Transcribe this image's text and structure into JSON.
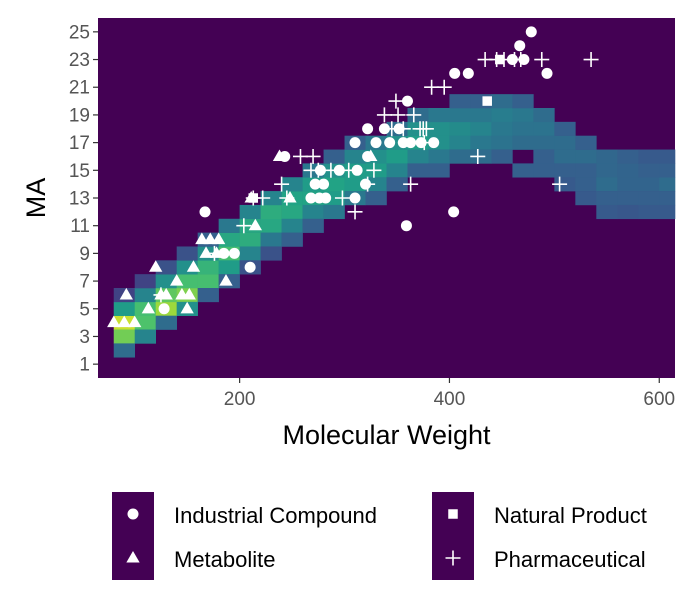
{
  "chart_data": {
    "type": "heatmap",
    "title": "",
    "xlabel": "Molecular Weight",
    "ylabel": "MA",
    "xlim": [
      65,
      615
    ],
    "ylim": [
      0,
      26
    ],
    "x_ticks": [
      200,
      400,
      600
    ],
    "x_tick_labels": [
      "200",
      "400",
      "600"
    ],
    "y_ticks": [
      1,
      3,
      5,
      7,
      9,
      11,
      13,
      15,
      17,
      19,
      21,
      23,
      25
    ],
    "y_tick_labels": [
      "1",
      "3",
      "5",
      "7",
      "9",
      "11",
      "13",
      "15",
      "17",
      "19",
      "21",
      "23",
      "25"
    ],
    "heatmap": {
      "x_bin_width": 20,
      "x_bins_start": 60,
      "y_bin_height": 1,
      "y_bins_start": 1,
      "description": "2D histogram of molecule counts (relative density 0-1) over molecular weight and MA, viridis color scale",
      "cells_xy_density": [
        [
          80,
          4,
          0.92
        ],
        [
          80,
          3,
          0.78
        ],
        [
          80,
          5,
          0.55
        ],
        [
          80,
          2,
          0.35
        ],
        [
          80,
          6,
          0.2
        ],
        [
          100,
          4,
          0.72
        ],
        [
          100,
          5,
          0.7
        ],
        [
          100,
          3,
          0.45
        ],
        [
          100,
          6,
          0.45
        ],
        [
          100,
          7,
          0.2
        ],
        [
          120,
          5,
          0.85
        ],
        [
          120,
          6,
          0.75
        ],
        [
          120,
          7,
          0.5
        ],
        [
          120,
          4,
          0.35
        ],
        [
          120,
          8,
          0.25
        ],
        [
          140,
          6,
          0.8
        ],
        [
          140,
          7,
          0.7
        ],
        [
          140,
          5,
          0.5
        ],
        [
          140,
          8,
          0.5
        ],
        [
          140,
          9,
          0.25
        ],
        [
          160,
          7,
          0.7
        ],
        [
          160,
          8,
          0.65
        ],
        [
          160,
          9,
          0.5
        ],
        [
          160,
          6,
          0.3
        ],
        [
          160,
          10,
          0.3
        ],
        [
          180,
          9,
          0.7
        ],
        [
          180,
          10,
          0.6
        ],
        [
          180,
          8,
          0.55
        ],
        [
          180,
          11,
          0.4
        ],
        [
          180,
          7,
          0.3
        ],
        [
          200,
          10,
          0.62
        ],
        [
          200,
          11,
          0.6
        ],
        [
          200,
          9,
          0.45
        ],
        [
          200,
          12,
          0.45
        ],
        [
          200,
          8,
          0.25
        ],
        [
          220,
          11,
          0.6
        ],
        [
          220,
          12,
          0.62
        ],
        [
          220,
          10,
          0.4
        ],
        [
          220,
          13,
          0.45
        ],
        [
          220,
          9,
          0.25
        ],
        [
          240,
          12,
          0.6
        ],
        [
          240,
          13,
          0.58
        ],
        [
          240,
          11,
          0.45
        ],
        [
          240,
          14,
          0.45
        ],
        [
          240,
          10,
          0.3
        ],
        [
          260,
          13,
          0.58
        ],
        [
          260,
          14,
          0.55
        ],
        [
          260,
          12,
          0.45
        ],
        [
          260,
          15,
          0.4
        ],
        [
          260,
          11,
          0.3
        ],
        [
          280,
          13,
          0.55
        ],
        [
          280,
          14,
          0.58
        ],
        [
          280,
          15,
          0.5
        ],
        [
          280,
          12,
          0.4
        ],
        [
          280,
          16,
          0.3
        ],
        [
          300,
          14,
          0.55
        ],
        [
          300,
          15,
          0.55
        ],
        [
          300,
          16,
          0.45
        ],
        [
          300,
          13,
          0.4
        ],
        [
          300,
          17,
          0.3
        ],
        [
          320,
          15,
          0.55
        ],
        [
          320,
          16,
          0.5
        ],
        [
          320,
          14,
          0.45
        ],
        [
          320,
          17,
          0.4
        ],
        [
          320,
          13,
          0.3
        ],
        [
          340,
          16,
          0.55
        ],
        [
          340,
          17,
          0.5
        ],
        [
          340,
          15,
          0.45
        ],
        [
          340,
          18,
          0.35
        ],
        [
          340,
          14,
          0.3
        ],
        [
          360,
          17,
          0.55
        ],
        [
          360,
          18,
          0.5
        ],
        [
          360,
          16,
          0.45
        ],
        [
          360,
          19,
          0.35
        ],
        [
          360,
          15,
          0.3
        ],
        [
          380,
          17,
          0.5
        ],
        [
          380,
          18,
          0.5
        ],
        [
          380,
          16,
          0.4
        ],
        [
          380,
          19,
          0.4
        ],
        [
          380,
          15,
          0.3
        ],
        [
          400,
          18,
          0.48
        ],
        [
          400,
          17,
          0.45
        ],
        [
          400,
          19,
          0.4
        ],
        [
          400,
          16,
          0.35
        ],
        [
          400,
          20,
          0.3
        ],
        [
          420,
          18,
          0.45
        ],
        [
          420,
          17,
          0.4
        ],
        [
          420,
          19,
          0.4
        ],
        [
          420,
          16,
          0.35
        ],
        [
          420,
          20,
          0.3
        ],
        [
          440,
          19,
          0.42
        ],
        [
          440,
          18,
          0.4
        ],
        [
          440,
          17,
          0.38
        ],
        [
          440,
          20,
          0.35
        ],
        [
          440,
          16,
          0.3
        ],
        [
          460,
          19,
          0.4
        ],
        [
          460,
          18,
          0.38
        ],
        [
          460,
          17,
          0.35
        ],
        [
          460,
          20,
          0.3
        ],
        [
          460,
          15,
          0.3
        ],
        [
          480,
          18,
          0.38
        ],
        [
          480,
          17,
          0.35
        ],
        [
          480,
          19,
          0.35
        ],
        [
          480,
          16,
          0.3
        ],
        [
          480,
          15,
          0.3
        ],
        [
          500,
          17,
          0.35
        ],
        [
          500,
          16,
          0.35
        ],
        [
          500,
          18,
          0.3
        ],
        [
          500,
          15,
          0.3
        ],
        [
          500,
          14,
          0.28
        ],
        [
          520,
          16,
          0.35
        ],
        [
          520,
          17,
          0.3
        ],
        [
          520,
          15,
          0.3
        ],
        [
          520,
          14,
          0.3
        ],
        [
          520,
          13,
          0.28
        ],
        [
          540,
          16,
          0.33
        ],
        [
          540,
          15,
          0.33
        ],
        [
          540,
          14,
          0.35
        ],
        [
          540,
          13,
          0.3
        ],
        [
          540,
          12,
          0.28
        ],
        [
          560,
          15,
          0.32
        ],
        [
          560,
          14,
          0.32
        ],
        [
          560,
          13,
          0.3
        ],
        [
          560,
          16,
          0.3
        ],
        [
          560,
          12,
          0.27
        ],
        [
          580,
          14,
          0.32
        ],
        [
          580,
          15,
          0.3
        ],
        [
          580,
          13,
          0.3
        ],
        [
          580,
          12,
          0.28
        ],
        [
          580,
          16,
          0.28
        ],
        [
          600,
          14,
          0.35
        ],
        [
          600,
          13,
          0.3
        ],
        [
          600,
          15,
          0.3
        ],
        [
          600,
          12,
          0.28
        ],
        [
          600,
          16,
          0.28
        ]
      ]
    },
    "series": [
      {
        "name": "Industrial Compound",
        "marker": "circle",
        "points": [
          [
            128,
            5
          ],
          [
            167,
            12
          ],
          [
            185,
            9
          ],
          [
            195,
            9
          ],
          [
            210,
            8
          ],
          [
            243,
            16
          ],
          [
            268,
            13
          ],
          [
            272,
            14
          ],
          [
            276,
            13
          ],
          [
            277,
            15
          ],
          [
            280,
            14
          ],
          [
            282,
            13
          ],
          [
            295,
            15
          ],
          [
            310,
            17
          ],
          [
            310,
            13
          ],
          [
            312,
            15
          ],
          [
            320,
            14
          ],
          [
            322,
            18
          ],
          [
            322,
            16
          ],
          [
            330,
            17
          ],
          [
            338,
            18
          ],
          [
            343,
            17
          ],
          [
            352,
            18
          ],
          [
            356,
            17
          ],
          [
            359,
            11
          ],
          [
            360,
            20
          ],
          [
            363,
            17
          ],
          [
            373,
            17
          ],
          [
            385,
            17
          ],
          [
            404,
            12
          ],
          [
            405,
            22
          ],
          [
            418,
            22
          ],
          [
            460,
            23
          ],
          [
            467,
            24
          ],
          [
            471,
            23
          ],
          [
            478,
            25
          ],
          [
            493,
            22
          ]
        ]
      },
      {
        "name": "Metabolite",
        "marker": "triangle",
        "points": [
          [
            80,
            4
          ],
          [
            90,
            4
          ],
          [
            92,
            6
          ],
          [
            100,
            4
          ],
          [
            113,
            5
          ],
          [
            120,
            8
          ],
          [
            125,
            6
          ],
          [
            130,
            6
          ],
          [
            140,
            7
          ],
          [
            145,
            6
          ],
          [
            150,
            5
          ],
          [
            152,
            6
          ],
          [
            156,
            8
          ],
          [
            164,
            10
          ],
          [
            168,
            9
          ],
          [
            172,
            10
          ],
          [
            178,
            9
          ],
          [
            180,
            10
          ],
          [
            187,
            7
          ],
          [
            211,
            13
          ],
          [
            215,
            11
          ],
          [
            238,
            16
          ],
          [
            248,
            13
          ],
          [
            325,
            16
          ]
        ]
      },
      {
        "name": "Natural Product",
        "marker": "square",
        "points": [
          [
            213,
            13
          ],
          [
            436,
            20
          ],
          [
            448,
            23
          ]
        ]
      },
      {
        "name": "Pharmaceutical",
        "marker": "plus",
        "points": [
          [
            125,
            6
          ],
          [
            176,
            9
          ],
          [
            204,
            11
          ],
          [
            213,
            13
          ],
          [
            222,
            13
          ],
          [
            240,
            14
          ],
          [
            245,
            13
          ],
          [
            258,
            16
          ],
          [
            268,
            15
          ],
          [
            270,
            16
          ],
          [
            275,
            15
          ],
          [
            287,
            15
          ],
          [
            298,
            13
          ],
          [
            304,
            15
          ],
          [
            310,
            12
          ],
          [
            322,
            14
          ],
          [
            328,
            15
          ],
          [
            338,
            19
          ],
          [
            345,
            18
          ],
          [
            349,
            20
          ],
          [
            351,
            19
          ],
          [
            356,
            18
          ],
          [
            363,
            14
          ],
          [
            366,
            19
          ],
          [
            372,
            18
          ],
          [
            375,
            18
          ],
          [
            376,
            17
          ],
          [
            378,
            18
          ],
          [
            383,
            21
          ],
          [
            395,
            21
          ],
          [
            427,
            16
          ],
          [
            434,
            23
          ],
          [
            445,
            23
          ],
          [
            452,
            23
          ],
          [
            462,
            23
          ],
          [
            468,
            23
          ],
          [
            488,
            23
          ],
          [
            505,
            14
          ],
          [
            535,
            23
          ]
        ]
      }
    ],
    "legend": {
      "placement": "bottom",
      "entries": [
        "Industrial Compound",
        "Metabolite",
        "Natural Product",
        "Pharmaceutical"
      ]
    },
    "colors": {
      "background": "#440154",
      "viridis_stops": [
        "#440154",
        "#46327e",
        "#365c8d",
        "#277f8e",
        "#1fa187",
        "#4ac16d",
        "#a0da39",
        "#fde725"
      ],
      "marker": "#ffffff",
      "tick": "#333333"
    }
  }
}
